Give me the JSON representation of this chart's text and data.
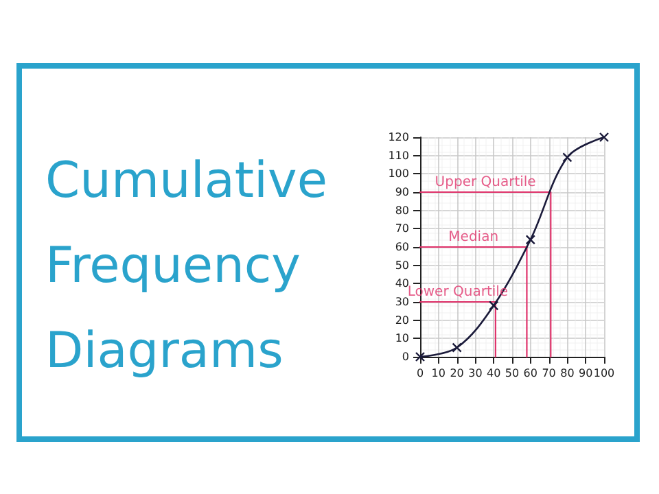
{
  "chart_data": {
    "type": "line",
    "title": "Cumulative Frequency Diagrams",
    "x": [
      0,
      20,
      40,
      60,
      80,
      100
    ],
    "series": [
      {
        "color": "#1a1a3a",
        "values": [
          0,
          5,
          28,
          64,
          109,
          120
        ],
        "marker": "cross"
      },
      {
        "color": "#e0336b",
        "x": [
          0,
          41,
          41
        ],
        "values": [
          30,
          30,
          0
        ],
        "marker": "none"
      },
      {
        "color": "#e0336b",
        "x": [
          0,
          58,
          58
        ],
        "values": [
          60,
          60,
          0
        ],
        "marker": "none"
      },
      {
        "color": "#e0336b",
        "x": [
          0,
          71,
          71
        ],
        "values": [
          90,
          90,
          0
        ],
        "marker": "none"
      }
    ],
    "xlim": [
      0,
      100
    ],
    "xticks": [
      0,
      10,
      20,
      30,
      40,
      50,
      60,
      70,
      80,
      90,
      100
    ],
    "ylim": [
      0,
      120
    ],
    "yticks": [
      0,
      10,
      20,
      30,
      40,
      50,
      60,
      70,
      80,
      90,
      100,
      110,
      120
    ],
    "grid": true,
    "annotations": [
      {
        "text": "Lower Quartile",
        "x": 20.5,
        "y": 30
      },
      {
        "text": "Median",
        "x": 29,
        "y": 60
      },
      {
        "text": "Upper Quartile",
        "x": 35.5,
        "y": 90
      }
    ]
  }
}
